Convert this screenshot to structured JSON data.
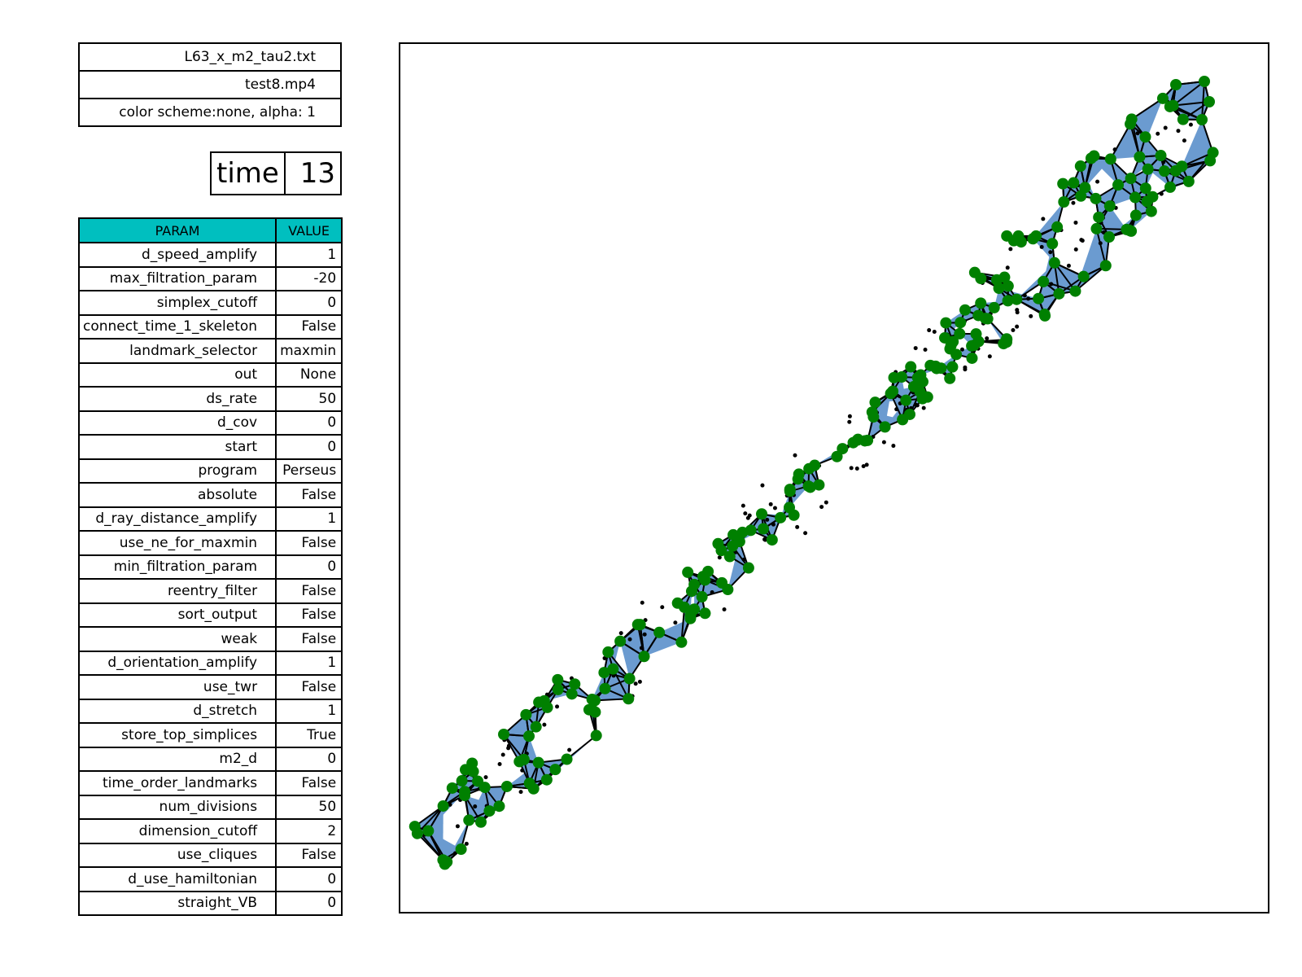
{
  "info": {
    "file": "L63_x_m2_tau2.txt",
    "movie": "test8.mp4",
    "scheme": "color scheme:none, alpha: 1"
  },
  "time": {
    "label": "time",
    "value": "13"
  },
  "params": {
    "header": {
      "param": "PARAM",
      "value": "VALUE"
    },
    "rows": [
      {
        "param": "d_speed_amplify",
        "value": "1"
      },
      {
        "param": "max_filtration_param",
        "value": "-20"
      },
      {
        "param": "simplex_cutoff",
        "value": "0"
      },
      {
        "param": "connect_time_1_skeleton",
        "value": "False"
      },
      {
        "param": "landmark_selector",
        "value": "maxmin"
      },
      {
        "param": "out",
        "value": "None"
      },
      {
        "param": "ds_rate",
        "value": "50"
      },
      {
        "param": "d_cov",
        "value": "0"
      },
      {
        "param": "start",
        "value": "0"
      },
      {
        "param": "program",
        "value": "Perseus"
      },
      {
        "param": "absolute",
        "value": "False"
      },
      {
        "param": "d_ray_distance_amplify",
        "value": "1"
      },
      {
        "param": "use_ne_for_maxmin",
        "value": "False"
      },
      {
        "param": "min_filtration_param",
        "value": "0"
      },
      {
        "param": "reentry_filter",
        "value": "False"
      },
      {
        "param": "sort_output",
        "value": "False"
      },
      {
        "param": "weak",
        "value": "False"
      },
      {
        "param": "d_orientation_amplify",
        "value": "1"
      },
      {
        "param": "use_twr",
        "value": "False"
      },
      {
        "param": "d_stretch",
        "value": "1"
      },
      {
        "param": "store_top_simplices",
        "value": "True"
      },
      {
        "param": "m2_d",
        "value": "0"
      },
      {
        "param": "time_order_landmarks",
        "value": "False"
      },
      {
        "param": "num_divisions",
        "value": "50"
      },
      {
        "param": "dimension_cutoff",
        "value": "2"
      },
      {
        "param": "use_cliques",
        "value": "False"
      },
      {
        "param": "d_use_hamiltonian",
        "value": "0"
      },
      {
        "param": "straight_VB",
        "value": "0"
      }
    ]
  },
  "plot": {
    "fill_color": "#6b9bd0",
    "edge_color": "#000000",
    "landmark_color": "#008000",
    "witness_color": "#000000"
  }
}
